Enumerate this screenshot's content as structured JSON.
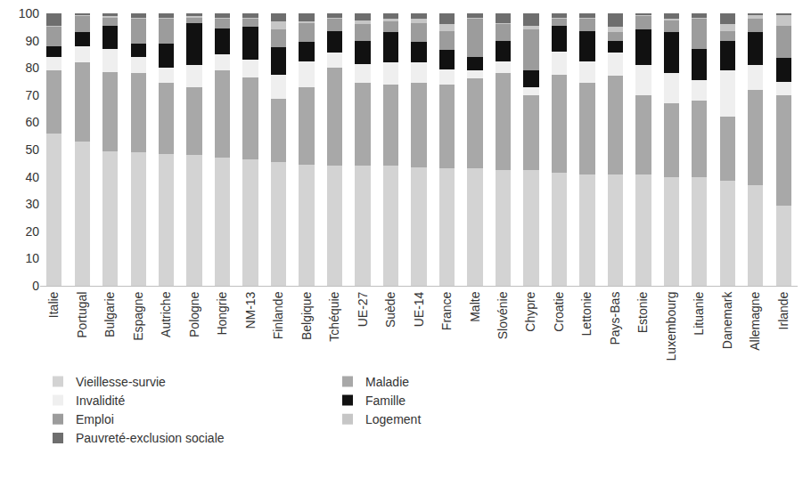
{
  "chart_data": {
    "type": "bar",
    "stacked": true,
    "legend": "bottom",
    "grid": false,
    "ylim": [
      0,
      100
    ],
    "yticks": [
      0,
      10,
      20,
      30,
      40,
      50,
      60,
      70,
      80,
      90,
      100
    ],
    "categories": [
      "Italie",
      "Portugal",
      "Bulgarie",
      "Espagne",
      "Autriche",
      "Pologne",
      "Hongrie",
      "NM-13",
      "Finlande",
      "Belgique",
      "Tchéquie",
      "UE-27",
      "Suède",
      "UE-14",
      "France",
      "Malte",
      "Slovénie",
      "Chypre",
      "Croatie",
      "Lettonie",
      "Pays-Bas",
      "Estonie",
      "Luxembourg",
      "Lituanie",
      "Danemark",
      "Allemagne",
      "Irlande"
    ],
    "series": [
      {
        "name": "Vieillesse-survie",
        "color": "#d3d3d3",
        "values": [
          56,
          53,
          49.5,
          49,
          48.5,
          48,
          47,
          46.5,
          45.5,
          44.5,
          44,
          44,
          44,
          43.5,
          43,
          43,
          42.5,
          42.5,
          41.5,
          41,
          41,
          41,
          40,
          40,
          38.5,
          37,
          29.5
        ]
      },
      {
        "name": "Maladie",
        "color": "#a8a8a8",
        "values": [
          23,
          29,
          29,
          29,
          26,
          25,
          32,
          30,
          23,
          28.5,
          36,
          30.5,
          30,
          31,
          31,
          33,
          35.5,
          27.5,
          36,
          33.5,
          36,
          29,
          27,
          28,
          23.5,
          35,
          40.5
        ]
      },
      {
        "name": "Invalidité",
        "color": "#efefef",
        "values": [
          5,
          6,
          8.5,
          6,
          5.5,
          8,
          6,
          6.5,
          9,
          9.5,
          5.5,
          7,
          8,
          7.5,
          5.5,
          3,
          4.5,
          3,
          8.5,
          8,
          8.5,
          11,
          11,
          7.5,
          17,
          9,
          5
        ]
      },
      {
        "name": "Famille",
        "color": "#111111",
        "values": [
          4,
          5,
          8.5,
          5,
          9,
          15.5,
          9.5,
          12,
          10,
          7,
          8,
          8.5,
          11,
          7.5,
          7,
          5,
          7.5,
          6,
          9.5,
          11,
          4.5,
          13,
          15,
          11.5,
          11,
          12,
          8.5
        ]
      },
      {
        "name": "Emploi",
        "color": "#9c9c9c",
        "values": [
          7,
          6,
          3,
          9,
          9,
          2,
          3.5,
          3,
          6.5,
          7,
          4.5,
          6,
          4,
          7,
          7,
          14,
          6,
          15,
          2.5,
          4.5,
          3,
          5,
          4.5,
          11,
          3.5,
          5,
          12
        ]
      },
      {
        "name": "Logement",
        "color": "#c6c6c6",
        "values": [
          0.5,
          0.2,
          0.5,
          0.5,
          0.5,
          0.5,
          0.5,
          0.5,
          3,
          0.5,
          0.5,
          1.5,
          1,
          1.5,
          2.5,
          0.5,
          0.5,
          1.5,
          0.5,
          0.5,
          2,
          0.2,
          0.5,
          0.5,
          2.5,
          1.5,
          4
        ]
      },
      {
        "name": "Pauvreté-exclusion sociale",
        "color": "#6e6e6e",
        "values": [
          4.5,
          0.8,
          1,
          1.5,
          1.5,
          1,
          1.5,
          1.5,
          3,
          3,
          1.5,
          2.5,
          2,
          2,
          4,
          1.5,
          3.5,
          4.5,
          1.5,
          1.5,
          5,
          0.8,
          2,
          1.5,
          4,
          0.5,
          0.5
        ]
      }
    ]
  }
}
